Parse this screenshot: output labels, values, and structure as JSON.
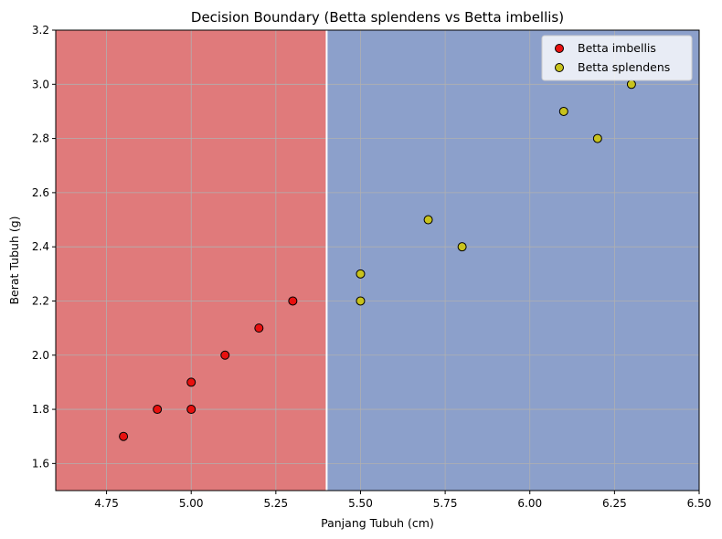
{
  "chart_data": {
    "type": "scatter",
    "title": "Decision Boundary (Betta splendens vs Betta imbellis)",
    "xlabel": "Panjang Tubuh (cm)",
    "ylabel": "Berat Tubuh (g)",
    "xlim": [
      4.6,
      6.5
    ],
    "ylim": [
      1.5,
      3.2
    ],
    "xticks": [
      "4.75",
      "5.00",
      "5.25",
      "5.50",
      "5.75",
      "6.00",
      "6.25",
      "6.50"
    ],
    "yticks": [
      "1.6",
      "1.8",
      "2.0",
      "2.2",
      "2.4",
      "2.6",
      "2.8",
      "3.0",
      "3.2"
    ],
    "grid": true,
    "legend_position": "top-right",
    "decision_boundary_x": 5.4,
    "regions": [
      {
        "side": "left",
        "color": "#e07a7b"
      },
      {
        "side": "right",
        "color": "#8ca0cb"
      }
    ],
    "series": [
      {
        "name": "Betta imbellis",
        "color": "#e8100f",
        "points": [
          [
            4.8,
            1.7
          ],
          [
            4.9,
            1.8
          ],
          [
            5.0,
            1.8
          ],
          [
            5.0,
            1.9
          ],
          [
            5.1,
            2.0
          ],
          [
            5.2,
            2.1
          ],
          [
            5.3,
            2.2
          ]
        ]
      },
      {
        "name": "Betta splendens",
        "color": "#c8c21c",
        "points": [
          [
            5.5,
            2.2
          ],
          [
            5.5,
            2.3
          ],
          [
            5.7,
            2.5
          ],
          [
            5.8,
            2.4
          ],
          [
            6.1,
            2.9
          ],
          [
            6.2,
            2.8
          ],
          [
            6.3,
            3.0
          ]
        ]
      }
    ]
  }
}
